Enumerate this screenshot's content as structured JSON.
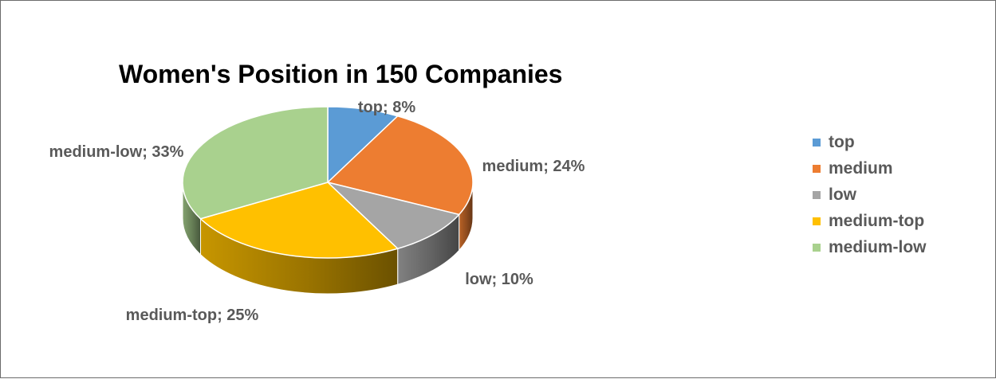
{
  "chart_data": {
    "type": "pie",
    "title": "Women's Position in 150 Companies",
    "categories": [
      "top",
      "medium",
      "low",
      "medium-top",
      "medium-low"
    ],
    "values": [
      8,
      24,
      10,
      25,
      33
    ],
    "unit": "%",
    "labels": [
      "top; 8%",
      "medium; 24%",
      "low; 10%",
      "medium-top; 25%",
      "medium-low; 33%"
    ],
    "colors": [
      "#5B9BD5",
      "#ED7D31",
      "#A5A5A5",
      "#FFC000",
      "#A9D18E"
    ],
    "legend_position": "right",
    "style": "3d-pie"
  }
}
